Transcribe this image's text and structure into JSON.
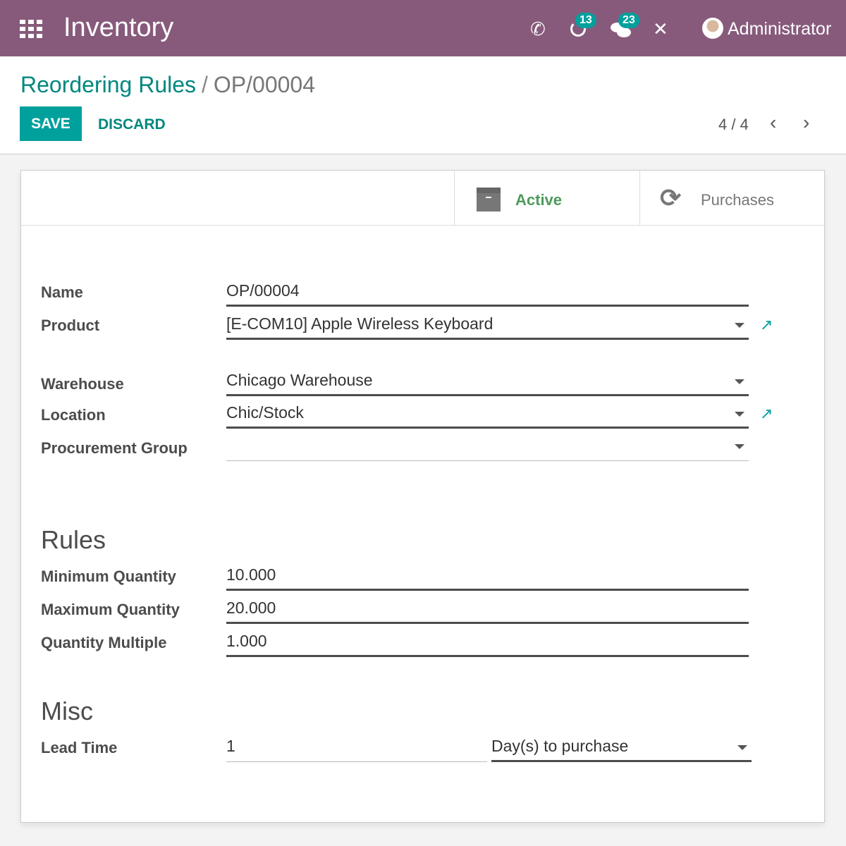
{
  "nav": {
    "app_title": "Inventory",
    "activity_badge": "13",
    "messages_badge": "23",
    "user": "Administrator"
  },
  "control": {
    "breadcrumb_parent": "Reordering Rules",
    "breadcrumb_sep": "/",
    "breadcrumb_current": "OP/00004",
    "save": "SAVE",
    "discard": "DISCARD",
    "pager": "4 / 4"
  },
  "smart_buttons": {
    "active": "Active",
    "purchases": "Purchases",
    "active_color": "#4e9a5c"
  },
  "form": {
    "name": {
      "label": "Name",
      "value": "OP/00004"
    },
    "product": {
      "label": "Product",
      "value": "[E-COM10] Apple Wireless Keyboard"
    },
    "warehouse": {
      "label": "Warehouse",
      "value": "Chicago Warehouse"
    },
    "location": {
      "label": "Location",
      "value": "Chic/Stock"
    },
    "procurement_group": {
      "label": "Procurement Group",
      "value": ""
    },
    "rules_title": "Rules",
    "min_qty": {
      "label": "Minimum Quantity",
      "value": "10.000"
    },
    "max_qty": {
      "label": "Maximum Quantity",
      "value": "20.000"
    },
    "qty_multiple": {
      "label": "Quantity Multiple",
      "value": "1.000"
    },
    "misc_title": "Misc",
    "lead_time": {
      "label": "Lead Time",
      "value": "1",
      "unit": "Day(s) to purchase"
    }
  },
  "colors": {
    "navbar": "#875a7b",
    "primary": "#00a09d"
  }
}
